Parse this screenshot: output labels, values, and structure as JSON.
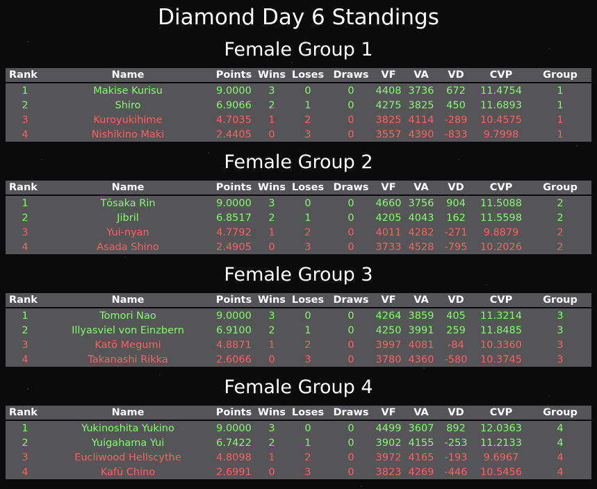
{
  "title": "Diamond Day 6 Standings",
  "colors": {
    "qualified": "#7fff6a",
    "eliminated": "#ff5f5f",
    "table_bg": "#555558",
    "background": "#0b0b0b"
  },
  "columns": {
    "rank": "Rank",
    "name": "Name",
    "points": "Points",
    "wins": "Wins",
    "loses": "Loses",
    "draws": "Draws",
    "vf": "VF",
    "va": "VA",
    "vd": "VD",
    "cvp": "CVP",
    "group": "Group"
  },
  "groups": [
    {
      "title": "Female Group 1",
      "rows": [
        {
          "rank": "1",
          "name": "Makise Kurisu",
          "points": "9.0000",
          "wins": "3",
          "loses": "0",
          "draws": "0",
          "vf": "4408",
          "va": "3736",
          "vd": "672",
          "cvp": "11.4754",
          "group": "1",
          "status": "qualified"
        },
        {
          "rank": "2",
          "name": "Shiro",
          "points": "6.9066",
          "wins": "2",
          "loses": "1",
          "draws": "0",
          "vf": "4275",
          "va": "3825",
          "vd": "450",
          "cvp": "11.6893",
          "group": "1",
          "status": "qualified"
        },
        {
          "rank": "3",
          "name": "Kuroyukihime",
          "points": "4.7035",
          "wins": "1",
          "loses": "2",
          "draws": "0",
          "vf": "3825",
          "va": "4114",
          "vd": "-289",
          "cvp": "10.4575",
          "group": "1",
          "status": "eliminated"
        },
        {
          "rank": "4",
          "name": "Nishikino Maki",
          "points": "2.4405",
          "wins": "0",
          "loses": "3",
          "draws": "0",
          "vf": "3557",
          "va": "4390",
          "vd": "-833",
          "cvp": "9.7998",
          "group": "1",
          "status": "eliminated"
        }
      ]
    },
    {
      "title": "Female Group 2",
      "rows": [
        {
          "rank": "1",
          "name": "Tōsaka Rin",
          "points": "9.0000",
          "wins": "3",
          "loses": "0",
          "draws": "0",
          "vf": "4660",
          "va": "3756",
          "vd": "904",
          "cvp": "11.5088",
          "group": "2",
          "status": "qualified"
        },
        {
          "rank": "2",
          "name": "Jibril",
          "points": "6.8517",
          "wins": "2",
          "loses": "1",
          "draws": "0",
          "vf": "4205",
          "va": "4043",
          "vd": "162",
          "cvp": "11.5598",
          "group": "2",
          "status": "qualified"
        },
        {
          "rank": "3",
          "name": "Yui-nyan",
          "points": "4.7792",
          "wins": "1",
          "loses": "2",
          "draws": "0",
          "vf": "4011",
          "va": "4282",
          "vd": "-271",
          "cvp": "9.8879",
          "group": "2",
          "status": "eliminated"
        },
        {
          "rank": "4",
          "name": "Asada Shino",
          "points": "2.4905",
          "wins": "0",
          "loses": "3",
          "draws": "0",
          "vf": "3733",
          "va": "4528",
          "vd": "-795",
          "cvp": "10.2026",
          "group": "2",
          "status": "eliminated"
        }
      ]
    },
    {
      "title": "Female Group 3",
      "rows": [
        {
          "rank": "1",
          "name": "Tomori Nao",
          "points": "9.0000",
          "wins": "3",
          "loses": "0",
          "draws": "0",
          "vf": "4264",
          "va": "3859",
          "vd": "405",
          "cvp": "11.3214",
          "group": "3",
          "status": "qualified"
        },
        {
          "rank": "2",
          "name": "Illyasviel von Einzbern",
          "points": "6.9100",
          "wins": "2",
          "loses": "1",
          "draws": "0",
          "vf": "4250",
          "va": "3991",
          "vd": "259",
          "cvp": "11.8485",
          "group": "3",
          "status": "qualified"
        },
        {
          "rank": "3",
          "name": "Katō Megumi",
          "points": "4.8871",
          "wins": "1",
          "loses": "2",
          "draws": "0",
          "vf": "3997",
          "va": "4081",
          "vd": "-84",
          "cvp": "10.3360",
          "group": "3",
          "status": "eliminated"
        },
        {
          "rank": "4",
          "name": "Takanashi Rikka",
          "points": "2.6066",
          "wins": "0",
          "loses": "3",
          "draws": "0",
          "vf": "3780",
          "va": "4360",
          "vd": "-580",
          "cvp": "10.3745",
          "group": "3",
          "status": "eliminated"
        }
      ]
    },
    {
      "title": "Female Group 4",
      "rows": [
        {
          "rank": "1",
          "name": "Yukinoshita Yukino",
          "points": "9.0000",
          "wins": "3",
          "loses": "0",
          "draws": "0",
          "vf": "4499",
          "va": "3607",
          "vd": "892",
          "cvp": "12.0363",
          "group": "4",
          "status": "qualified"
        },
        {
          "rank": "2",
          "name": "Yuigahama Yui",
          "points": "6.7422",
          "wins": "2",
          "loses": "1",
          "draws": "0",
          "vf": "3902",
          "va": "4155",
          "vd": "-253",
          "cvp": "11.2133",
          "group": "4",
          "status": "qualified"
        },
        {
          "rank": "3",
          "name": "Eucliwood Hellscythe",
          "points": "4.8098",
          "wins": "1",
          "loses": "2",
          "draws": "0",
          "vf": "3972",
          "va": "4165",
          "vd": "-193",
          "cvp": "9.6967",
          "group": "4",
          "status": "eliminated"
        },
        {
          "rank": "4",
          "name": "Kafū Chino",
          "points": "2.6991",
          "wins": "0",
          "loses": "3",
          "draws": "0",
          "vf": "3823",
          "va": "4269",
          "vd": "-446",
          "cvp": "10.5456",
          "group": "4",
          "status": "eliminated"
        }
      ]
    }
  ]
}
